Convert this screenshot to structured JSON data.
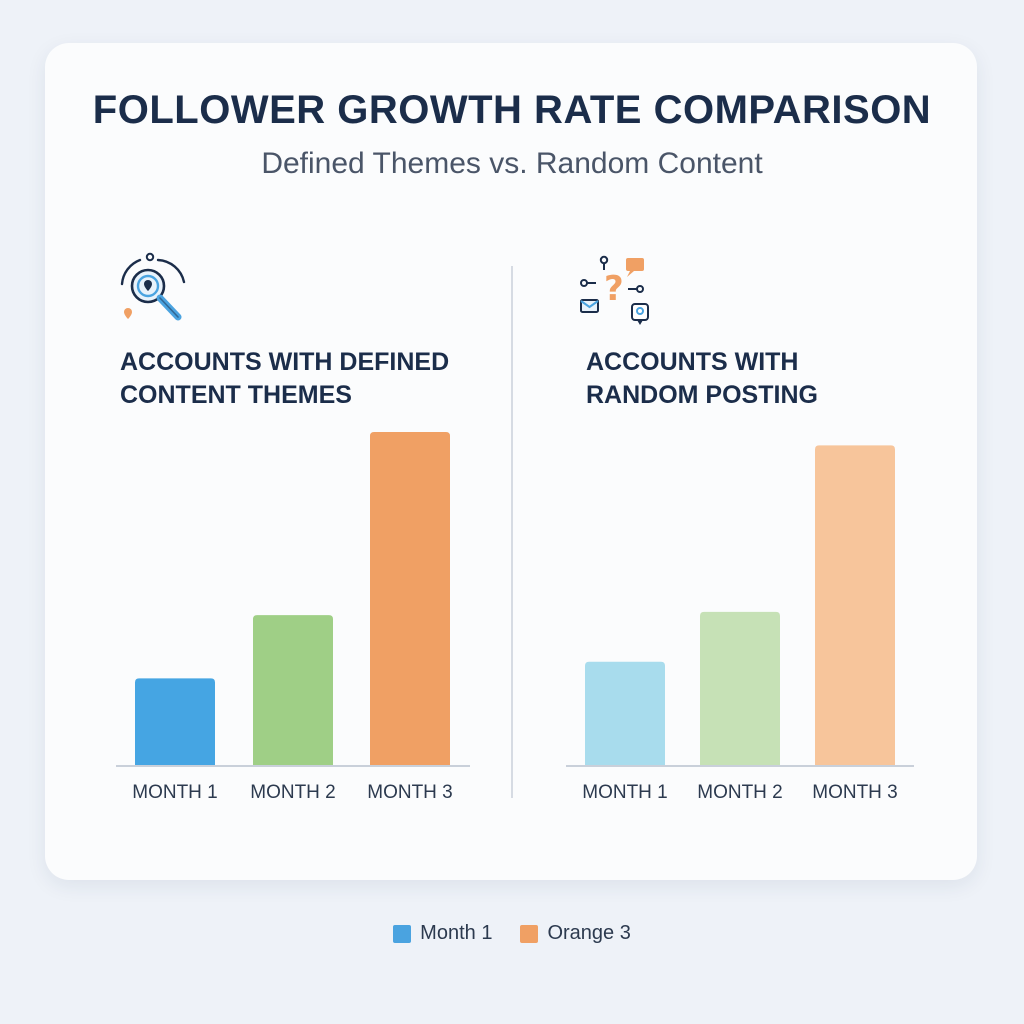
{
  "title": "FOLLOWER GROWTH RATE COMPARISON",
  "subtitle": "Defined Themes vs. Random Content",
  "panels": [
    {
      "heading_line1": "ACCOUNTS WITH DEFINED",
      "heading_line2": "CONTENT THEMES",
      "icon": "magnifier-location-icon"
    },
    {
      "heading_line1": "ACCOUNTS WITH",
      "heading_line2": "RANDOM POSTING",
      "icon": "scattered-question-icon"
    }
  ],
  "legend": [
    {
      "label": "Month 1",
      "color": "#4aa3e0"
    },
    {
      "label": "Orange 3",
      "color": "#f0a064"
    }
  ],
  "chart_data": [
    {
      "type": "bar",
      "title": "ACCOUNTS WITH DEFINED CONTENT THEMES",
      "categories": [
        "MONTH 1",
        "MONTH 2",
        "MONTH 3"
      ],
      "values": [
        26,
        45,
        100
      ],
      "colors": [
        "#45a5e3",
        "#9fcf86",
        "#f0a064"
      ],
      "ylim": [
        0,
        100
      ],
      "grid": false
    },
    {
      "type": "bar",
      "title": "ACCOUNTS WITH RANDOM POSTING",
      "categories": [
        "MONTH 1",
        "MONTH 2",
        "MONTH 3"
      ],
      "values": [
        31,
        46,
        96
      ],
      "colors": [
        "#a8dced",
        "#c6e1b6",
        "#f7c59b"
      ],
      "ylim": [
        0,
        100
      ],
      "grid": false
    }
  ]
}
